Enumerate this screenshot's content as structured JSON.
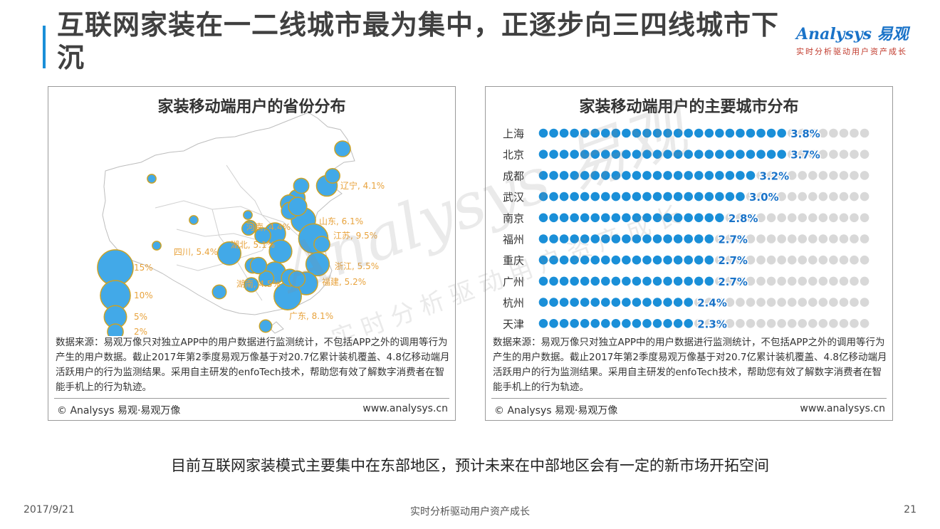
{
  "header": {
    "title": "互联网家装在一二线城市最为集中，正逐步向三四线城市下沉",
    "logo_main": "Analysys 易观",
    "logo_sub": "实时分析驱动用户资产成长"
  },
  "colors": {
    "accent": "#1a8fd8",
    "bubble": "#42a9e8",
    "bubble_border": "#c9a227",
    "label": "#e8a33d",
    "dot_on": "#1a8fd8",
    "dot_off": "#d8d8d8",
    "value": "#1a73c8"
  },
  "chart_data": [
    {
      "type": "scatter",
      "title": "家装移动端用户的省份分布",
      "legend": [
        {
          "label": "15%",
          "value": 15
        },
        {
          "label": "10%",
          "value": 10
        },
        {
          "label": "5%",
          "value": 5
        },
        {
          "label": "2%",
          "value": 2
        }
      ],
      "provinces": [
        {
          "name": "辽宁",
          "label": "辽宁, 4.1%",
          "value": 4.1
        },
        {
          "name": "山东",
          "label": "山东, 6.1%",
          "value": 6.1
        },
        {
          "name": "河南",
          "label": "河南, 4.4%",
          "value": 4.4
        },
        {
          "name": "江苏",
          "label": "江苏, 9.5%",
          "value": 9.5
        },
        {
          "name": "四川",
          "label": "四川, 5.4%",
          "value": 5.4
        },
        {
          "name": "湖北",
          "label": "湖北, 5.1%",
          "value": 5.1
        },
        {
          "name": "浙江",
          "label": "浙江, 5.5%",
          "value": 5.5
        },
        {
          "name": "湖南",
          "label": "湖南, 4.5%",
          "value": 4.5
        },
        {
          "name": "福建",
          "label": "福建, 5.2%",
          "value": 5.2
        },
        {
          "name": "广东",
          "label": "广东, 8.1%",
          "value": 8.1
        }
      ],
      "source": "数据来源：易观万像只对独立APP中的用户数据进行监测统计，不包括APP之外的调用等行为产生的用户数据。截止2017年第2季度易观万像基于对20.7亿累计装机覆盖、4.8亿移动端月活跃用户的行为监测结果。采用自主研发的enfoTech技术，帮助您有效了解数字消费者在智能手机上的行为轨迹。",
      "copyright": "© Analysys 易观·易观万像",
      "website": "www.analysys.cn"
    },
    {
      "type": "bar",
      "title": "家装移动端用户的主要城市分布",
      "categories": [
        "上海",
        "北京",
        "成都",
        "武汉",
        "南京",
        "福州",
        "重庆",
        "广州",
        "杭州",
        "天津"
      ],
      "values": [
        3.8,
        3.7,
        3.2,
        3.0,
        2.8,
        2.7,
        2.7,
        2.7,
        2.4,
        2.3
      ],
      "value_labels": [
        "3.8%",
        "3.7%",
        "3.2%",
        "3.0%",
        "2.8%",
        "2.7%",
        "2.7%",
        "2.7%",
        "2.4%",
        "2.3%"
      ],
      "dots_total": 32,
      "dots_filled": [
        24,
        24,
        21,
        20,
        18,
        17,
        17,
        17,
        15,
        15
      ],
      "source": "数据来源：易观万像只对独立APP中的用户数据进行监测统计，不包括APP之外的调用等行为产生的用户数据。截止2017年第2季度易观万像基于对20.7亿累计装机覆盖、4.8亿移动端月活跃用户的行为监测结果。采用自主研发的enfoTech技术，帮助您有效了解数字消费者在智能手机上的行为轨迹。",
      "copyright": "© Analysys 易观·易观万像",
      "website": "www.analysys.cn"
    }
  ],
  "conclusion": "目前互联网家装模式主要集中在东部地区，预计未来在中部地区会有一定的新市场开拓空间",
  "footer": {
    "date": "2017/9/21",
    "slogan": "实时分析驱动用户资产成长",
    "page": "21"
  },
  "watermark": {
    "main": "Analysys 易观",
    "sub": "实时分析驱动用户资产成长"
  }
}
